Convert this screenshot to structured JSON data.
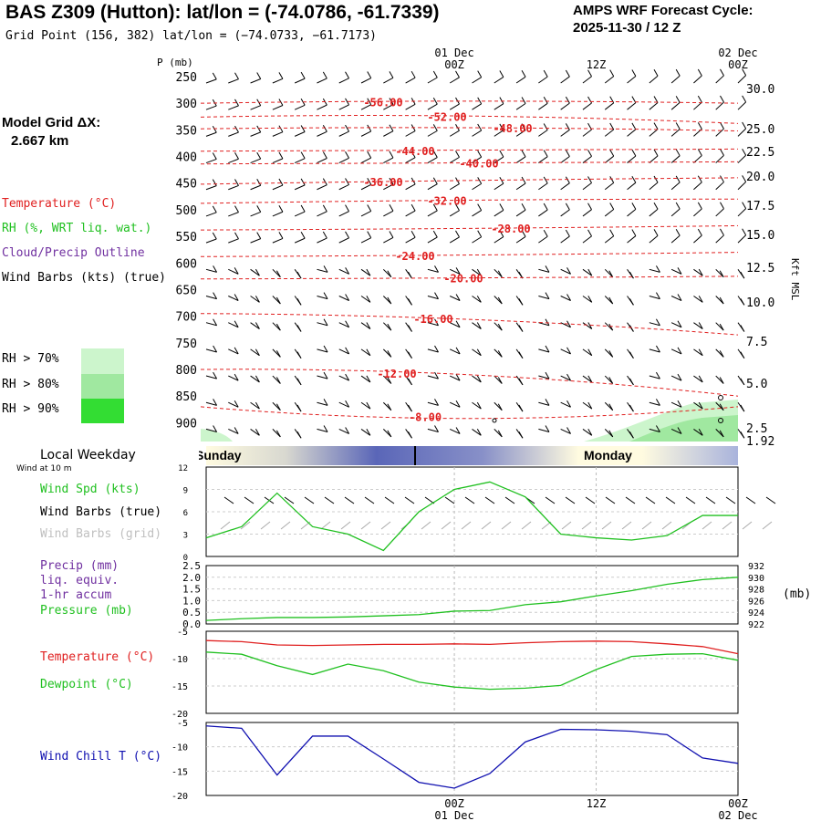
{
  "header": {
    "title": "BAS Z309 (Hutton):  lat/lon = (-74.0786, -61.7339)",
    "grid_point": "Grid Point (156, 382) lat/lon = (−74.0733, −61.7173)",
    "cycle_label": "AMPS WRF Forecast Cycle:",
    "cycle_value": "2025-11-30 / 12  Z"
  },
  "time_axis": {
    "ticks": [
      {
        "label": "00Z",
        "date": "01 Dec"
      },
      {
        "label": "12Z",
        "date": ""
      },
      {
        "label": "00Z",
        "date": "02 Dec"
      }
    ]
  },
  "side_labels": {
    "model_grid": "Model Grid ΔX:",
    "model_grid_value": "2.667 km",
    "temperature": "Temperature (°C)",
    "rh": "RH (%, WRT liq. wat.)",
    "cloud": "Cloud/Precip Outline",
    "wind_barbs": "Wind Barbs (kts) (true)",
    "rh_legend": [
      "RH > 70%",
      "RH > 80%",
      "RH > 90%"
    ],
    "local_weekday": "Local Weekday",
    "wind_10m": "Wind at 10 m",
    "wind_spd": "Wind Spd (kts)",
    "wind_barbs_true": "Wind Barbs (true)",
    "wind_barbs_grid": "Wind Barbs (grid)",
    "precip": "Precip (mm)",
    "precip_2": "liq. equiv.",
    "precip_3": "1-hr accum",
    "pressure": "Pressure (mb)",
    "temp2": "Temperature (°C)",
    "dewpoint": "Dewpoint (°C)",
    "windchill": "Wind Chill T (°C)",
    "p_units": "P (mb)",
    "kft": "Kft MSL",
    "mb": "(mb)"
  },
  "colors": {
    "temperature": "#e02020",
    "dewpoint": "#20c020",
    "windchill": "#1010b0",
    "rh70": "#ccf5cc",
    "rh80": "#a0e8a0",
    "rh90": "#33dd33",
    "purple": "#7030a0"
  },
  "weekday_band": {
    "left_label": "Sunday",
    "right_label": "Monday"
  },
  "chart_data": [
    {
      "type": "line",
      "name": "sounding",
      "title": "",
      "ylabel": "P (mb)",
      "y_ticks": [
        250,
        300,
        350,
        400,
        450,
        500,
        550,
        600,
        650,
        700,
        750,
        800,
        850,
        900
      ],
      "y2_ticks": [
        "30.0",
        "25.0",
        "22.5",
        "20.0",
        "17.5",
        "15.0",
        "12.5",
        "10.0",
        "7.5",
        "5.0",
        "2.5",
        "1.92"
      ],
      "isotherm_labels": [
        "-56.00",
        "-52.00",
        "-48.00",
        "-44.00",
        "-40.00",
        "-36.00",
        "-32.00",
        "-28.00",
        "-24.00",
        "-20.00",
        "-16.00",
        "-12.00",
        "-8.00"
      ],
      "isotherms": [
        {
          "label": "-56.00",
          "p": [
            300,
            296,
            300
          ]
        },
        {
          "label": "-52.00",
          "p": [
            326,
            324,
            338
          ]
        },
        {
          "label": "-48.00",
          "p": [
            348,
            346,
            352
          ]
        },
        {
          "label": "-44.00",
          "p": [
            390,
            388,
            386
          ]
        },
        {
          "label": "-40.00",
          "p": [
            414,
            412,
            410
          ]
        },
        {
          "label": "-36.00",
          "p": [
            452,
            445,
            440
          ]
        },
        {
          "label": "-32.00",
          "p": [
            488,
            482,
            480
          ]
        },
        {
          "label": "-28.00",
          "p": [
            538,
            535,
            530
          ]
        },
        {
          "label": "-24.00",
          "p": [
            588,
            585,
            580
          ]
        },
        {
          "label": "-20.00",
          "p": [
            630,
            628,
            625
          ]
        },
        {
          "label": "-16.00",
          "p": [
            695,
            706,
            735
          ]
        },
        {
          "label": "-12.00",
          "p": [
            800,
            810,
            850
          ]
        },
        {
          "label": "-8.00",
          "p": [
            870,
            892,
            870
          ]
        }
      ]
    },
    {
      "type": "line",
      "name": "wind",
      "ylim": [
        0,
        12
      ],
      "y_ticks": [
        0,
        3,
        6,
        9,
        12
      ],
      "x": [
        -21,
        -18,
        -15,
        -12,
        -9,
        -6,
        -3,
        0,
        3,
        6,
        9,
        12,
        15,
        18,
        21,
        24
      ],
      "series": [
        {
          "name": "Wind Spd (kts)",
          "values": [
            2.5,
            4,
            8.5,
            4,
            3,
            0.8,
            6,
            9,
            10,
            8,
            3,
            2.5,
            2.2,
            2.8,
            5.5,
            5.5
          ]
        }
      ]
    },
    {
      "type": "line",
      "name": "precip_pressure",
      "ylim": [
        0,
        2.5
      ],
      "y_ticks": [
        "0.0",
        "0.5",
        "1.0",
        "1.5",
        "2.0",
        "2.5"
      ],
      "y2_ticks": [
        "922",
        "924",
        "926",
        "928",
        "930",
        "932"
      ],
      "x": [
        -21,
        -18,
        -15,
        -12,
        -9,
        -6,
        -3,
        0,
        3,
        6,
        9,
        12,
        15,
        18,
        21,
        24
      ],
      "series": [
        {
          "name": "Pressure (mb)",
          "values": [
            922.6,
            922.9,
            923.1,
            923.1,
            923.2,
            923.4,
            923.6,
            924.2,
            924.3,
            925.3,
            925.8,
            926.8,
            927.7,
            928.8,
            929.6,
            930.0
          ]
        }
      ]
    },
    {
      "type": "line",
      "name": "temperature",
      "ylim": [
        -20,
        -5
      ],
      "y_ticks": [
        -5,
        -10,
        -15,
        -20
      ],
      "x": [
        -21,
        -18,
        -15,
        -12,
        -9,
        -6,
        -3,
        0,
        3,
        6,
        9,
        12,
        15,
        18,
        21,
        24
      ],
      "series": [
        {
          "name": "Temperature (°C)",
          "values": [
            -6.7,
            -6.9,
            -7.5,
            -7.6,
            -7.5,
            -7.4,
            -7.4,
            -7.3,
            -7.4,
            -7.1,
            -6.9,
            -6.8,
            -6.9,
            -7.3,
            -7.8,
            -9.1
          ]
        },
        {
          "name": "Dewpoint (°C)",
          "values": [
            -8.8,
            -9.2,
            -11.3,
            -12.9,
            -11.0,
            -12.2,
            -14.3,
            -15.2,
            -15.6,
            -15.4,
            -14.9,
            -12.0,
            -9.6,
            -9.2,
            -9.1,
            -10.3
          ]
        }
      ]
    },
    {
      "type": "line",
      "name": "windchill",
      "ylim": [
        -20,
        -5
      ],
      "y_ticks": [
        -5,
        -10,
        -15,
        -20
      ],
      "x": [
        -21,
        -18,
        -15,
        -12,
        -9,
        -6,
        -3,
        0,
        3,
        6,
        9,
        12,
        15,
        18,
        21,
        24
      ],
      "series": [
        {
          "name": "Wind Chill T (°C)",
          "values": [
            -5.7,
            -6.2,
            -15.8,
            -7.8,
            -7.8,
            -12.5,
            -17.3,
            -18.5,
            -15.5,
            -9.0,
            -6.4,
            -6.5,
            -6.8,
            -7.5,
            -12.3,
            -13.4
          ]
        }
      ]
    }
  ]
}
